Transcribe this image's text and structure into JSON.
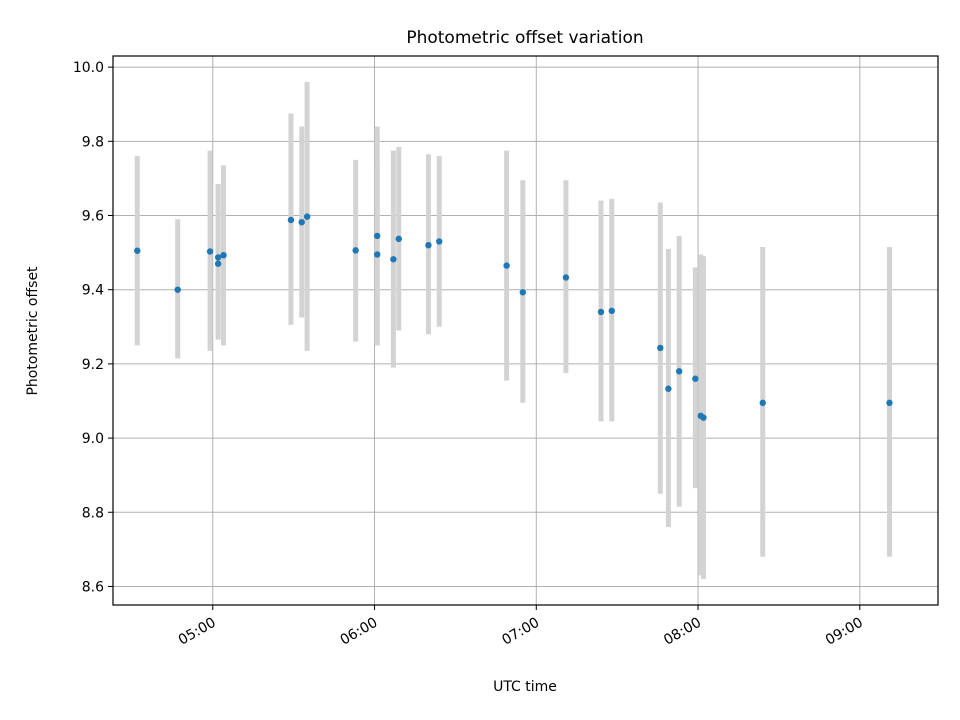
{
  "chart_data": {
    "type": "scatter",
    "title": "Photometric offset variation",
    "xlabel": "UTC time",
    "ylabel": "Photometric offset",
    "x_ticks": [
      "05:00",
      "06:00",
      "07:00",
      "08:00",
      "09:00"
    ],
    "x_tick_values": [
      "05:00",
      "06:00",
      "07:00",
      "08:00",
      "09:00"
    ],
    "y_ticks": [
      "8.6",
      "8.8",
      "9.0",
      "9.2",
      "9.4",
      "9.6",
      "9.8",
      "10.0"
    ],
    "y_tick_values": [
      8.6,
      8.8,
      9.0,
      9.2,
      9.4,
      9.6,
      9.8,
      10.0
    ],
    "xlim": [
      "04:23",
      "09:29"
    ],
    "ylim": [
      8.55,
      10.03
    ],
    "grid": true,
    "colors": {
      "points": "#1f77b4",
      "errorbars": "#d3d3d3",
      "grid": "#b0b0b0"
    },
    "points": [
      {
        "x": "04:32",
        "y": 9.505,
        "ylow": 9.25,
        "yhigh": 9.76
      },
      {
        "x": "04:47",
        "y": 9.4,
        "ylow": 9.215,
        "yhigh": 9.59
      },
      {
        "x": "04:59",
        "y": 9.503,
        "ylow": 9.235,
        "yhigh": 9.775
      },
      {
        "x": "05:02",
        "y": 9.47,
        "ylow": 9.265,
        "yhigh": 9.685
      },
      {
        "x": "05:02",
        "y": 9.487,
        "ylow": 9.27,
        "yhigh": 9.685
      },
      {
        "x": "05:04",
        "y": 9.493,
        "ylow": 9.25,
        "yhigh": 9.735
      },
      {
        "x": "05:29",
        "y": 9.588,
        "ylow": 9.305,
        "yhigh": 9.875
      },
      {
        "x": "05:33",
        "y": 9.582,
        "ylow": 9.325,
        "yhigh": 9.84
      },
      {
        "x": "05:35",
        "y": 9.597,
        "ylow": 9.235,
        "yhigh": 9.96
      },
      {
        "x": "05:53",
        "y": 9.506,
        "ylow": 9.26,
        "yhigh": 9.75
      },
      {
        "x": "06:01",
        "y": 9.495,
        "ylow": 9.25,
        "yhigh": 9.74
      },
      {
        "x": "06:01",
        "y": 9.545,
        "ylow": 9.25,
        "yhigh": 9.84
      },
      {
        "x": "06:07",
        "y": 9.482,
        "ylow": 9.19,
        "yhigh": 9.775
      },
      {
        "x": "06:09",
        "y": 9.537,
        "ylow": 9.29,
        "yhigh": 9.785
      },
      {
        "x": "06:20",
        "y": 9.52,
        "ylow": 9.28,
        "yhigh": 9.765
      },
      {
        "x": "06:24",
        "y": 9.53,
        "ylow": 9.3,
        "yhigh": 9.76
      },
      {
        "x": "06:49",
        "y": 9.465,
        "ylow": 9.155,
        "yhigh": 9.775
      },
      {
        "x": "06:55",
        "y": 9.393,
        "ylow": 9.095,
        "yhigh": 9.695
      },
      {
        "x": "07:11",
        "y": 9.433,
        "ylow": 9.175,
        "yhigh": 9.695
      },
      {
        "x": "07:24",
        "y": 9.34,
        "ylow": 9.045,
        "yhigh": 9.64
      },
      {
        "x": "07:28",
        "y": 9.343,
        "ylow": 9.045,
        "yhigh": 9.645
      },
      {
        "x": "07:46",
        "y": 9.243,
        "ylow": 8.85,
        "yhigh": 9.635
      },
      {
        "x": "07:49",
        "y": 9.133,
        "ylow": 8.76,
        "yhigh": 9.51
      },
      {
        "x": "07:53",
        "y": 9.18,
        "ylow": 8.815,
        "yhigh": 9.545
      },
      {
        "x": "07:59",
        "y": 9.16,
        "ylow": 8.865,
        "yhigh": 9.46
      },
      {
        "x": "08:01",
        "y": 9.06,
        "ylow": 8.63,
        "yhigh": 9.495
      },
      {
        "x": "08:02",
        "y": 9.055,
        "ylow": 8.62,
        "yhigh": 9.49
      },
      {
        "x": "08:24",
        "y": 9.095,
        "ylow": 8.68,
        "yhigh": 9.515
      },
      {
        "x": "09:11",
        "y": 9.095,
        "ylow": 8.68,
        "yhigh": 9.515
      }
    ]
  }
}
